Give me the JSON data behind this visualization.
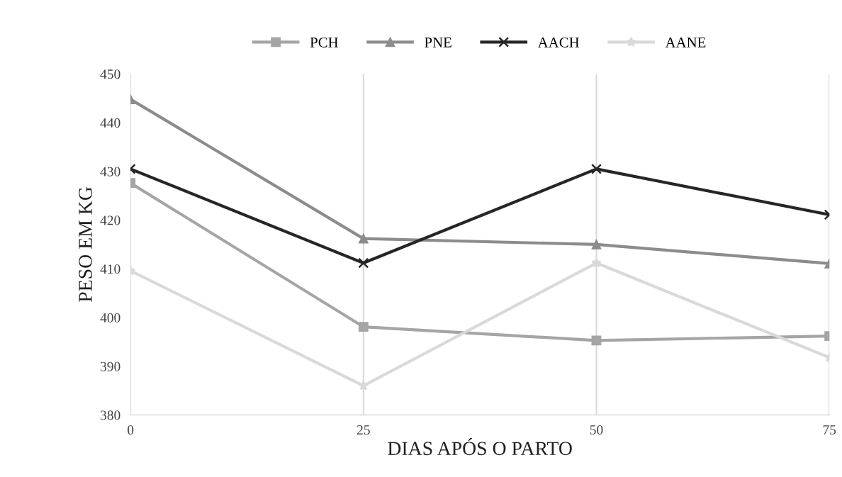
{
  "chart_data": {
    "type": "line",
    "xlabel": "DIAS APÓS O PARTO",
    "ylabel": "PESO EM KG",
    "x": [
      0,
      25,
      50,
      75
    ],
    "series": [
      {
        "name": "PCH",
        "color": "#a5a5a5",
        "marker": "square",
        "values": [
          427.6,
          398.1,
          395.3,
          396.2
        ]
      },
      {
        "name": "PNE",
        "color": "#8c8c8c",
        "marker": "triangle",
        "values": [
          444.8,
          416.2,
          415.0,
          411.1
        ]
      },
      {
        "name": "AACH",
        "color": "#262626",
        "marker": "cross",
        "values": [
          430.5,
          411.2,
          430.5,
          421.1
        ]
      },
      {
        "name": "AANE",
        "color": "#d9d9d9",
        "marker": "star",
        "values": [
          409.6,
          386.0,
          411.2,
          391.8
        ]
      }
    ],
    "xlim": [
      0,
      75
    ],
    "xticks": [
      0,
      25,
      50,
      75
    ],
    "ylim": [
      380,
      450
    ],
    "yticks": [
      380,
      390,
      400,
      410,
      420,
      430,
      440,
      450
    ],
    "grid": "x",
    "legend": "top",
    "line_style": "solid"
  }
}
